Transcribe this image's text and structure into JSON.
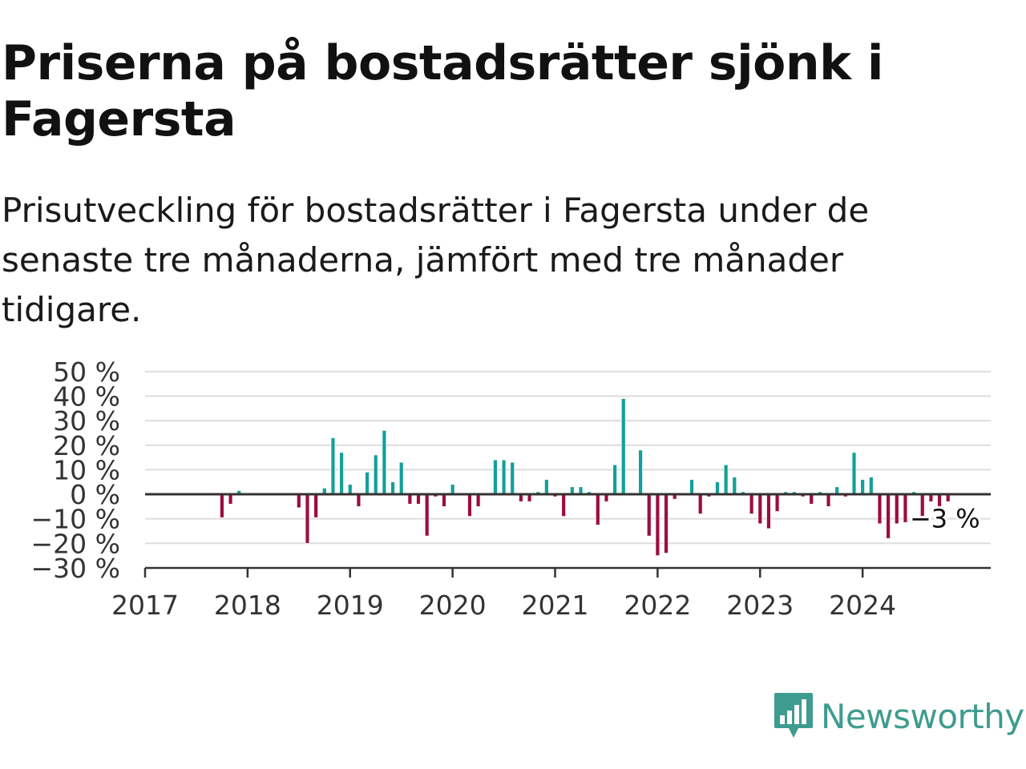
{
  "header": {
    "title": "Priserna på bostadsrätter sjönk i Fagersta",
    "subtitle": "Prisutveckling för bostadsrätter i Fagersta under de senaste tre månaderna, jämfört med tre månader tidigare."
  },
  "brand": {
    "name": "Newsworthy",
    "icon": "newsworthy-logo-icon"
  },
  "colors": {
    "positive": "#13a098",
    "negative": "#9b0d3f",
    "grid": "#dddddd",
    "axis": "#333333",
    "brand": "#3e9b8f"
  },
  "chart_data": {
    "type": "bar",
    "title": "",
    "xlabel": "",
    "ylabel": "",
    "ylim": [
      -30,
      50
    ],
    "yticks": [
      50,
      40,
      30,
      20,
      10,
      0,
      -10,
      -20,
      -30
    ],
    "ytick_labels": [
      "50 %",
      "40 %",
      "30 %",
      "20 %",
      "10 %",
      "0 %",
      "−10 %",
      "−20 %",
      "−30 %"
    ],
    "xlim": [
      "2017-01",
      "2025-04"
    ],
    "xtick_labels": [
      "2017",
      "2018",
      "2019",
      "2020",
      "2021",
      "2022",
      "2023",
      "2024"
    ],
    "grid": true,
    "legend": "none",
    "annotation": {
      "text": "−3 %",
      "x": "2024-11"
    },
    "series": [
      {
        "x": [
          "2017-10",
          "2017-11",
          "2017-12",
          "2018-01",
          "2018-02",
          "2018-03",
          "2018-04",
          "2018-05",
          "2018-06",
          "2018-07",
          "2018-08",
          "2018-09",
          "2018-10",
          "2018-11",
          "2018-12",
          "2019-01",
          "2019-02",
          "2019-03",
          "2019-04",
          "2019-05",
          "2019-06",
          "2019-07",
          "2019-08",
          "2019-09",
          "2019-10",
          "2019-11",
          "2019-12",
          "2020-01",
          "2020-02",
          "2020-03",
          "2020-04",
          "2020-05",
          "2020-06",
          "2020-07",
          "2020-08",
          "2020-09",
          "2020-10",
          "2020-11",
          "2020-12",
          "2021-01",
          "2021-02",
          "2021-03",
          "2021-04",
          "2021-05",
          "2021-06",
          "2021-07",
          "2021-08",
          "2021-09",
          "2021-10",
          "2021-11",
          "2021-12",
          "2022-01",
          "2022-02",
          "2022-03",
          "2022-04",
          "2022-05",
          "2022-06",
          "2022-07",
          "2022-08",
          "2022-09",
          "2022-10",
          "2022-11",
          "2022-12",
          "2023-01",
          "2023-02",
          "2023-03",
          "2023-04",
          "2023-05",
          "2023-06",
          "2023-07",
          "2023-08",
          "2023-09",
          "2023-10",
          "2023-11",
          "2023-12",
          "2024-01",
          "2024-02",
          "2024-03",
          "2024-04",
          "2024-05",
          "2024-06",
          "2024-07",
          "2024-08",
          "2024-09",
          "2024-10",
          "2024-11"
        ],
        "values": [
          -9.5,
          -4,
          1.5,
          0,
          0,
          0,
          0,
          0,
          0,
          -5.5,
          -20,
          -9.5,
          2.5,
          23,
          17,
          4,
          -5,
          9,
          16,
          26,
          5,
          13,
          -4,
          -4,
          -17,
          -1,
          -5,
          4,
          0,
          -9,
          -5,
          0,
          14,
          14,
          13,
          -3,
          -3,
          1,
          6,
          -1,
          -9,
          3,
          3,
          1,
          -12.5,
          -3,
          12,
          39,
          0,
          18,
          -17,
          -25,
          -24,
          -2,
          0,
          6,
          -8,
          -1,
          5,
          12,
          7,
          1,
          -8,
          -12,
          -14,
          -7,
          1,
          1,
          -1,
          -4,
          1,
          -5,
          3,
          -1,
          17,
          6,
          7,
          -12,
          -18,
          -12,
          -11.5,
          1,
          -10,
          -3,
          -5,
          -3
        ]
      }
    ]
  }
}
